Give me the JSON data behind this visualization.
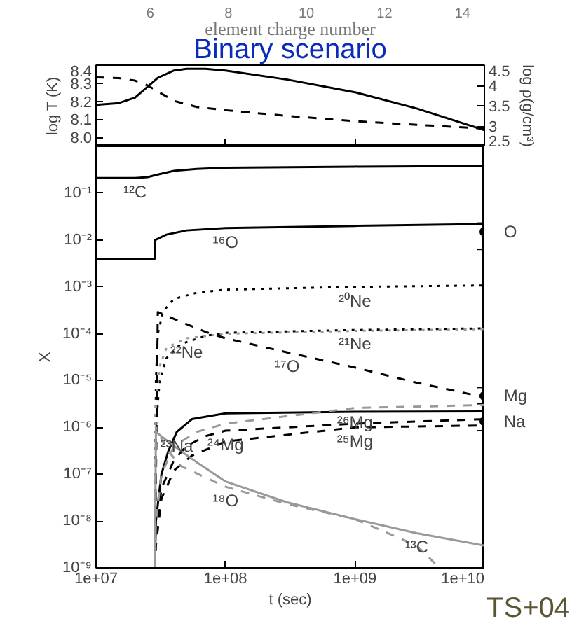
{
  "chart_data": [
    {
      "type": "line",
      "title": "Binary scenario",
      "ylabel": "log T (K)",
      "y2label": "log ρ(g/cm³)",
      "log": "x",
      "tick_labels": "y",
      "annotations": [
        "6",
        "8",
        "10",
        "12",
        "14",
        "element charge number"
      ],
      "xlim": [
        10000000,
        10000000000
      ],
      "xticks": [
        {
          "value": 10000000,
          "label": null
        },
        {
          "value": 100000000,
          "label": null
        },
        {
          "value": 1000000000,
          "label": null
        },
        {
          "value": 10000000000,
          "label": null
        }
      ],
      "ylim": [
        7.95,
        8.4
      ],
      "yticks": [
        {
          "value": 8.0,
          "label": "8.0"
        },
        8.1,
        8.2,
        8.3,
        8.4
      ],
      "y2lim": [
        2.5,
        4.5
      ],
      "y2ticks": [
        2.5,
        3,
        3.5,
        4,
        4.5
      ],
      "series": [
        {
          "color": "#000000",
          "line_style": "solid",
          "x": [
            10000000,
            15000000,
            20000000,
            25000000,
            30000000,
            40000000,
            50000000,
            70000000,
            100000000,
            300000000,
            1000000000,
            3000000000,
            10000000000
          ],
          "values": [
            8.18,
            8.19,
            8.22,
            8.28,
            8.33,
            8.37,
            8.38,
            8.38,
            8.37,
            8.32,
            8.25,
            8.16,
            8.04
          ]
        },
        {
          "color": "#000000",
          "line_style": "dashed",
          "axis": "y2",
          "x": [
            10000000,
            15000000,
            20000000,
            25000000,
            30000000,
            40000000,
            60000000,
            100000000,
            300000000,
            1000000000,
            3000000000,
            10000000000
          ],
          "values": [
            4.2,
            4.18,
            4.12,
            4.0,
            3.85,
            3.62,
            3.47,
            3.39,
            3.25,
            3.12,
            3.03,
            2.94
          ]
        }
      ]
    },
    {
      "type": "line",
      "xlabel": "t (sec)",
      "ylabel": "X",
      "log": "xy",
      "xlim": [
        10000000,
        10000000000
      ],
      "xticks": [
        {
          "value": 10000000,
          "label": "1e+07"
        },
        {
          "value": 100000000,
          "label": "1e+08"
        },
        {
          "value": 1000000000,
          "label": "1e+09"
        },
        {
          "value": 10000000000,
          "label": "1e+10"
        }
      ],
      "ylim": [
        1e-09,
        1
      ],
      "yticks": [
        {
          "value": 1e-09,
          "label": "10⁻⁹"
        },
        {
          "value": 1e-08,
          "label": "10⁻⁸"
        },
        {
          "value": 1e-07,
          "label": "10⁻⁷"
        },
        {
          "value": 1e-06,
          "label": "10⁻⁶"
        },
        {
          "value": 1e-05,
          "label": "10⁻⁵"
        },
        {
          "value": 0.0001,
          "label": "10⁻⁴"
        },
        {
          "value": 0.001,
          "label": "10⁻³"
        },
        {
          "value": 0.01,
          "label": "10⁻²"
        },
        {
          "value": 0.1,
          "label": "10⁻¹"
        },
        {
          "value": 1,
          "label": null
        }
      ],
      "annotations": [
        {
          "text": "¹²C",
          "x": 20000000,
          "y": 0.21
        },
        {
          "text": "¹⁶O",
          "x": 100000000,
          "y": 0.018
        },
        {
          "text": "²⁰Ne",
          "x": 1000000000,
          "y": 0.001
        },
        {
          "text": "¹⁷O",
          "x": 300000000,
          "y": 4e-05
        },
        {
          "text": "²¹Ne",
          "x": 1000000000,
          "y": 0.00012
        },
        {
          "text": "²²Ne",
          "x": 50000000,
          "y": 8e-05
        },
        {
          "text": "²³Na",
          "x": 42000000,
          "y": 8e-07
        },
        {
          "text": "²⁶Mg",
          "x": 1000000000,
          "y": 2.6e-06
        },
        {
          "text": "²⁴Mg",
          "x": 100000000,
          "y": 8.5e-07
        },
        {
          "text": "²⁵Mg",
          "x": 1000000000,
          "y": 1e-06
        },
        {
          "text": "¹⁸O",
          "x": 100000000,
          "y": 5.4e-08
        },
        {
          "text": "¹³C",
          "x": 3000000000,
          "y": 5.5e-09
        },
        {
          "text": "O",
          "x": 10000000000,
          "y": 0.015
        },
        {
          "text": "Mg",
          "x": 10000000000,
          "y": 4.7e-06
        },
        {
          "text": "Na",
          "x": 10000000000,
          "y": 1.35e-06
        },
        "TS+04"
      ],
      "series": [
        {
          "color": "#000000",
          "line_style": "solid",
          "x": [
            10000000,
            20000000,
            25000000,
            30000000,
            40000000,
            60000000,
            100000000,
            1000000000,
            10000000000
          ],
          "values": [
            0.21,
            0.21,
            0.22,
            0.25,
            0.3,
            0.33,
            0.35,
            0.37,
            0.38
          ]
        },
        {
          "color": "#000000",
          "line_style": "solid",
          "x": [
            10000000,
            28500000,
            28600000,
            35000000,
            50000000,
            100000000,
            1000000000,
            10000000000
          ],
          "values": [
            0.004,
            0.004,
            0.01,
            0.013,
            0.016,
            0.018,
            0.02,
            0.022
          ]
        },
        {
          "color": "#000000",
          "line_style": "dotted",
          "x": [
            28500000,
            29000000,
            30000000,
            33000000,
            40000000,
            60000000,
            100000000,
            1000000000,
            10000000000
          ],
          "values": [
            1e-09,
            1e-05,
            0.0001,
            0.0003,
            0.00055,
            0.00075,
            0.00087,
            0.001,
            0.00107
          ]
        },
        {
          "color": "#000000",
          "line_style": "dotted",
          "x": [
            28500000,
            29000000,
            31000000,
            35000000,
            45000000,
            70000000,
            100000000,
            1000000000,
            10000000000
          ],
          "values": [
            1e-09,
            1e-06,
            1e-05,
            3e-05,
            6e-05,
            9e-05,
            0.000105,
            0.00012,
            0.00013
          ]
        },
        {
          "color": "#999999",
          "line_style": "dotted",
          "x": [
            28500000,
            29000000,
            31000000,
            35000000,
            50000000,
            100000000,
            1000000000,
            10000000000
          ],
          "values": [
            1e-09,
            3e-06,
            2e-05,
            5e-05,
            8e-05,
            0.0001,
            0.000115,
            0.000125
          ]
        },
        {
          "color": "#000000",
          "line_style": "dashed",
          "x": [
            28500000,
            30000000,
            50000000,
            70000000,
            100000000,
            300000000,
            1000000000,
            3000000000,
            10000000000
          ],
          "values": [
            1e-09,
            0.00029,
            0.00016,
            0.00011,
            8e-05,
            4e-05,
            1.9e-05,
            9e-06,
            4.4e-06
          ]
        },
        {
          "color": "#000000",
          "line_style": "solid",
          "x": [
            28500000,
            29000000,
            32000000,
            36000000,
            42000000,
            55000000,
            100000000,
            1000000000,
            10000000000
          ],
          "values": [
            1e-09,
            1e-08,
            1e-07,
            3e-07,
            8e-07,
            1.5e-06,
            2e-06,
            2.15e-06,
            2.2e-06
          ]
        },
        {
          "color": "#000000",
          "line_style": "dashed",
          "x": [
            28500000,
            29000000,
            32000000,
            40000000,
            50000000,
            70000000,
            100000000,
            1000000000,
            10000000000
          ],
          "values": [
            1e-09,
            5e-09,
            5e-08,
            2e-07,
            4e-07,
            6.5e-07,
            8.5e-07,
            1.2e-06,
            1.5e-06
          ]
        },
        {
          "color": "#000000",
          "line_style": "dashed",
          "x": [
            28500000,
            29000000,
            32000000,
            40000000,
            55000000,
            100000000,
            1000000000,
            10000000000
          ],
          "values": [
            1e-09,
            3e-09,
            3e-08,
            1.2e-07,
            2.5e-07,
            5e-07,
            1e-06,
            1.1e-06
          ]
        },
        {
          "color": "#999999",
          "line_style": "dashed",
          "x": [
            28500000,
            29000000,
            32000000,
            40000000,
            60000000,
            100000000,
            1000000000,
            10000000000
          ],
          "values": [
            1e-09,
            1e-08,
            1e-07,
            4e-07,
            8e-07,
            1.2e-06,
            2.6e-06,
            3e-06
          ]
        },
        {
          "color": "#999999",
          "line_style": "solid",
          "x": [
            28500000,
            29000000,
            40000000,
            60000000,
            100000000,
            300000000,
            1000000000,
            3000000000,
            10000000000
          ],
          "values": [
            1e-09,
            8e-07,
            4e-07,
            1.8e-07,
            7e-08,
            2.5e-08,
            1.1e-08,
            5.5e-09,
            3e-09
          ]
        },
        {
          "color": "#999999",
          "line_style": "dashed",
          "x": [
            28500000,
            29000000,
            35000000,
            45000000,
            100000000,
            300000000,
            1000000000,
            3000000000,
            4500000000
          ],
          "values": [
            1e-09,
            1e-06,
            3.5e-07,
            1.5e-07,
            5.4e-08,
            2.3e-08,
            1.1e-08,
            3e-09,
            1e-09
          ]
        },
        {
          "type": "scatter",
          "marker": "circle",
          "color": "#000000",
          "x": [
            10000000000,
            10000000000,
            10000000000
          ],
          "values": [
            0.015,
            4.7e-06,
            1.35e-06
          ],
          "errors": [
            [
              0.0063,
              0.023
            ],
            [
              3.2e-06,
              7.1e-06
            ],
            [
              8.5e-07,
              2.2e-06
            ]
          ]
        }
      ]
    }
  ]
}
